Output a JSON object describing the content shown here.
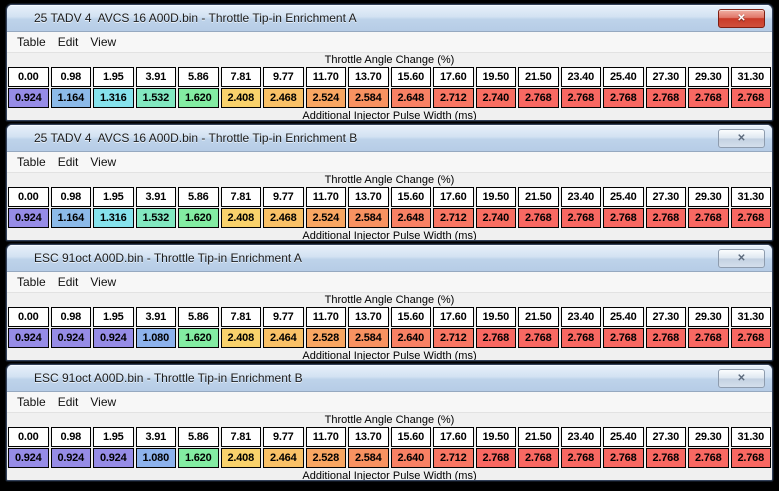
{
  "app": {
    "background_color": "#000000",
    "titlebar_gradient_top": "#e7f0fa",
    "titlebar_gradient_bottom": "#b6cce6"
  },
  "windows": [
    {
      "title": "25 TADV 4  AVCS 16 A00D.bin - Throttle Tip-in Enrichment A",
      "close_button_style": "red",
      "close_icon": "✕",
      "menu_items": [
        "Table",
        "Edit",
        "View"
      ],
      "x_axis_title": "Throttle Angle Change (%)",
      "y_axis_title": "Additional Injector Pulse Width (ms)",
      "columns": [
        "0.00",
        "0.98",
        "1.95",
        "3.91",
        "5.86",
        "7.81",
        "9.77",
        "11.70",
        "13.70",
        "15.60",
        "17.60",
        "19.50",
        "21.50",
        "23.40",
        "25.40",
        "27.30",
        "29.30",
        "31.30"
      ],
      "cells": [
        {
          "value": "0.924",
          "color": "#968ce6"
        },
        {
          "value": "1.164",
          "color": "#8cbae8"
        },
        {
          "value": "1.316",
          "color": "#86e2ec"
        },
        {
          "value": "1.532",
          "color": "#82e8c0"
        },
        {
          "value": "1.620",
          "color": "#83eca2"
        },
        {
          "value": "2.408",
          "color": "#f9d26c"
        },
        {
          "value": "2.468",
          "color": "#f9c167"
        },
        {
          "value": "2.524",
          "color": "#f8a662"
        },
        {
          "value": "2.584",
          "color": "#f89261"
        },
        {
          "value": "2.648",
          "color": "#f88164"
        },
        {
          "value": "2.712",
          "color": "#f87663"
        },
        {
          "value": "2.740",
          "color": "#f86e62"
        },
        {
          "value": "2.768",
          "color": "#f86862"
        },
        {
          "value": "2.768",
          "color": "#f86862"
        },
        {
          "value": "2.768",
          "color": "#f86862"
        },
        {
          "value": "2.768",
          "color": "#f86862"
        },
        {
          "value": "2.768",
          "color": "#f86862"
        },
        {
          "value": "2.768",
          "color": "#f86862"
        }
      ]
    },
    {
      "title": "25 TADV 4  AVCS 16 A00D.bin - Throttle Tip-in Enrichment B",
      "close_button_style": "normal",
      "close_icon": "✕",
      "menu_items": [
        "Table",
        "Edit",
        "View"
      ],
      "x_axis_title": "Throttle Angle Change (%)",
      "y_axis_title": "Additional Injector Pulse Width (ms)",
      "columns": [
        "0.00",
        "0.98",
        "1.95",
        "3.91",
        "5.86",
        "7.81",
        "9.77",
        "11.70",
        "13.70",
        "15.60",
        "17.60",
        "19.50",
        "21.50",
        "23.40",
        "25.40",
        "27.30",
        "29.30",
        "31.30"
      ],
      "cells": [
        {
          "value": "0.924",
          "color": "#968ce6"
        },
        {
          "value": "1.164",
          "color": "#8cbae8"
        },
        {
          "value": "1.316",
          "color": "#86e2ec"
        },
        {
          "value": "1.532",
          "color": "#82e8c0"
        },
        {
          "value": "1.620",
          "color": "#83eca2"
        },
        {
          "value": "2.408",
          "color": "#f9d26c"
        },
        {
          "value": "2.468",
          "color": "#f9c167"
        },
        {
          "value": "2.524",
          "color": "#f8a662"
        },
        {
          "value": "2.584",
          "color": "#f89261"
        },
        {
          "value": "2.648",
          "color": "#f88164"
        },
        {
          "value": "2.712",
          "color": "#f87663"
        },
        {
          "value": "2.740",
          "color": "#f86e62"
        },
        {
          "value": "2.768",
          "color": "#f86862"
        },
        {
          "value": "2.768",
          "color": "#f86862"
        },
        {
          "value": "2.768",
          "color": "#f86862"
        },
        {
          "value": "2.768",
          "color": "#f86862"
        },
        {
          "value": "2.768",
          "color": "#f86862"
        },
        {
          "value": "2.768",
          "color": "#f86862"
        }
      ]
    },
    {
      "title": "ESC 91oct A00D.bin - Throttle Tip-in Enrichment A",
      "close_button_style": "normal",
      "close_icon": "✕",
      "menu_items": [
        "Table",
        "Edit",
        "View"
      ],
      "x_axis_title": "Throttle Angle Change (%)",
      "y_axis_title": "Additional Injector Pulse Width (ms)",
      "columns": [
        "0.00",
        "0.98",
        "1.95",
        "3.91",
        "5.86",
        "7.81",
        "9.77",
        "11.70",
        "13.70",
        "15.60",
        "17.60",
        "19.50",
        "21.50",
        "23.40",
        "25.40",
        "27.30",
        "29.30",
        "31.30"
      ],
      "cells": [
        {
          "value": "0.924",
          "color": "#968ce6"
        },
        {
          "value": "0.924",
          "color": "#968ce6"
        },
        {
          "value": "0.924",
          "color": "#968ce6"
        },
        {
          "value": "1.080",
          "color": "#8db2ec"
        },
        {
          "value": "1.620",
          "color": "#83eca2"
        },
        {
          "value": "2.408",
          "color": "#f9d26c"
        },
        {
          "value": "2.464",
          "color": "#f9c167"
        },
        {
          "value": "2.528",
          "color": "#f8a662"
        },
        {
          "value": "2.584",
          "color": "#f89261"
        },
        {
          "value": "2.640",
          "color": "#f88164"
        },
        {
          "value": "2.712",
          "color": "#f87663"
        },
        {
          "value": "2.768",
          "color": "#f86862"
        },
        {
          "value": "2.768",
          "color": "#f86862"
        },
        {
          "value": "2.768",
          "color": "#f86862"
        },
        {
          "value": "2.768",
          "color": "#f86862"
        },
        {
          "value": "2.768",
          "color": "#f86862"
        },
        {
          "value": "2.768",
          "color": "#f86862"
        },
        {
          "value": "2.768",
          "color": "#f86862"
        }
      ]
    },
    {
      "title": "ESC 91oct A00D.bin - Throttle Tip-in Enrichment B",
      "close_button_style": "normal",
      "close_icon": "✕",
      "menu_items": [
        "Table",
        "Edit",
        "View"
      ],
      "x_axis_title": "Throttle Angle Change (%)",
      "y_axis_title": "Additional Injector Pulse Width (ms)",
      "columns": [
        "0.00",
        "0.98",
        "1.95",
        "3.91",
        "5.86",
        "7.81",
        "9.77",
        "11.70",
        "13.70",
        "15.60",
        "17.60",
        "19.50",
        "21.50",
        "23.40",
        "25.40",
        "27.30",
        "29.30",
        "31.30"
      ],
      "cells": [
        {
          "value": "0.924",
          "color": "#968ce6"
        },
        {
          "value": "0.924",
          "color": "#968ce6"
        },
        {
          "value": "0.924",
          "color": "#968ce6"
        },
        {
          "value": "1.080",
          "color": "#8db2ec"
        },
        {
          "value": "1.620",
          "color": "#83eca2"
        },
        {
          "value": "2.408",
          "color": "#f9d26c"
        },
        {
          "value": "2.464",
          "color": "#f9c167"
        },
        {
          "value": "2.528",
          "color": "#f8a662"
        },
        {
          "value": "2.584",
          "color": "#f89261"
        },
        {
          "value": "2.640",
          "color": "#f88164"
        },
        {
          "value": "2.712",
          "color": "#f87663"
        },
        {
          "value": "2.768",
          "color": "#f86862"
        },
        {
          "value": "2.768",
          "color": "#f86862"
        },
        {
          "value": "2.768",
          "color": "#f86862"
        },
        {
          "value": "2.768",
          "color": "#f86862"
        },
        {
          "value": "2.768",
          "color": "#f86862"
        },
        {
          "value": "2.768",
          "color": "#f86862"
        },
        {
          "value": "2.768",
          "color": "#f86862"
        }
      ]
    }
  ]
}
